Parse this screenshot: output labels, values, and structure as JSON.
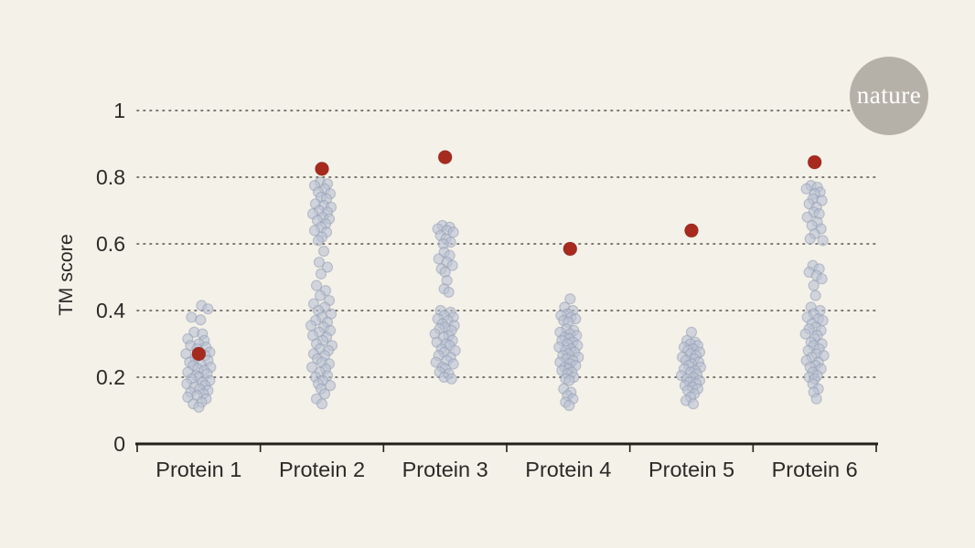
{
  "page": {
    "background_color": "#f4f1e9"
  },
  "logo": {
    "label": "nature",
    "circle_color": "#b6b1a8",
    "text_color": "#ffffff"
  },
  "chart_data": {
    "type": "scatter",
    "variant": "strip-plot-with-highlights",
    "title": "",
    "xlabel": "",
    "ylabel": "TM score",
    "ylim": [
      0,
      1
    ],
    "yticks": [
      0,
      0.2,
      0.4,
      0.6,
      0.8,
      1
    ],
    "ytick_labels": [
      "0",
      "0.2",
      "0.4",
      "0.6",
      "0.8",
      "1"
    ],
    "categories": [
      "Protein 1",
      "Protein 2",
      "Protein 3",
      "Protein 4",
      "Protein 5",
      "Protein 6"
    ],
    "grid": "dotted-horizontal",
    "legend": "none",
    "colors": {
      "background": "#f4f1e9",
      "dot_fill": "#b9c1d2",
      "dot_edge": "#8f99b0",
      "highlight": "#a62a1e",
      "axis": "#222019",
      "grid": "#53514b",
      "text": "#2b2a26"
    },
    "series": [
      {
        "name": "Protein 1",
        "highlight": 0.27,
        "highlight_dx": 0,
        "points": [
          [
            3,
            0.415
          ],
          [
            10,
            0.405
          ],
          [
            -8,
            0.38
          ],
          [
            2,
            0.372
          ],
          [
            -5,
            0.335
          ],
          [
            4,
            0.33
          ],
          [
            -12,
            0.315
          ],
          [
            6,
            0.31
          ],
          [
            0,
            0.3
          ],
          [
            -9,
            0.295
          ],
          [
            8,
            0.29
          ],
          [
            -2,
            0.285
          ],
          [
            12,
            0.275
          ],
          [
            -14,
            0.27
          ],
          [
            7,
            0.265
          ],
          [
            -4,
            0.255
          ],
          [
            10,
            0.25
          ],
          [
            -10,
            0.245
          ],
          [
            2,
            0.24
          ],
          [
            -6,
            0.235
          ],
          [
            13,
            0.23
          ],
          [
            -1,
            0.225
          ],
          [
            6,
            0.22
          ],
          [
            -12,
            0.215
          ],
          [
            9,
            0.21
          ],
          [
            -3,
            0.205
          ],
          [
            0,
            0.2
          ],
          [
            -8,
            0.195
          ],
          [
            12,
            0.19
          ],
          [
            4,
            0.185
          ],
          [
            -13,
            0.18
          ],
          [
            7,
            0.175
          ],
          [
            -5,
            0.17
          ],
          [
            1,
            0.165
          ],
          [
            10,
            0.16
          ],
          [
            -9,
            0.155
          ],
          [
            5,
            0.15
          ],
          [
            -2,
            0.145
          ],
          [
            -12,
            0.14
          ],
          [
            8,
            0.135
          ],
          [
            3,
            0.125
          ],
          [
            -6,
            0.12
          ],
          [
            0,
            0.11
          ]
        ]
      },
      {
        "name": "Protein 2",
        "highlight": 0.825,
        "highlight_dx": 0,
        "points": [
          [
            -2,
            0.785
          ],
          [
            6,
            0.78
          ],
          [
            -8,
            0.775
          ],
          [
            3,
            0.765
          ],
          [
            -4,
            0.755
          ],
          [
            9,
            0.75
          ],
          [
            -1,
            0.74
          ],
          [
            5,
            0.735
          ],
          [
            -7,
            0.72
          ],
          [
            2,
            0.715
          ],
          [
            10,
            0.71
          ],
          [
            -3,
            0.7
          ],
          [
            6,
            0.695
          ],
          [
            -10,
            0.69
          ],
          [
            1,
            0.68
          ],
          [
            8,
            0.675
          ],
          [
            -5,
            0.67
          ],
          [
            4,
            0.66
          ],
          [
            -1,
            0.65
          ],
          [
            -8,
            0.64
          ],
          [
            5,
            0.635
          ],
          [
            0,
            0.62
          ],
          [
            -4,
            0.61
          ],
          [
            2,
            0.578
          ],
          [
            -3,
            0.545
          ],
          [
            6,
            0.53
          ],
          [
            -1,
            0.51
          ],
          [
            -6,
            0.475
          ],
          [
            4,
            0.46
          ],
          [
            -2,
            0.445
          ],
          [
            8,
            0.43
          ],
          [
            -9,
            0.42
          ],
          [
            3,
            0.41
          ],
          [
            -4,
            0.4
          ],
          [
            10,
            0.39
          ],
          [
            0,
            0.38
          ],
          [
            -7,
            0.37
          ],
          [
            6,
            0.365
          ],
          [
            -12,
            0.355
          ],
          [
            2,
            0.35
          ],
          [
            9,
            0.34
          ],
          [
            -3,
            0.335
          ],
          [
            -10,
            0.325
          ],
          [
            5,
            0.32
          ],
          [
            1,
            0.31
          ],
          [
            -6,
            0.3
          ],
          [
            11,
            0.295
          ],
          [
            -2,
            0.285
          ],
          [
            7,
            0.28
          ],
          [
            -9,
            0.27
          ],
          [
            3,
            0.265
          ],
          [
            -5,
            0.255
          ],
          [
            0,
            0.245
          ],
          [
            8,
            0.24
          ],
          [
            -11,
            0.23
          ],
          [
            4,
            0.225
          ],
          [
            -2,
            0.215
          ],
          [
            6,
            0.205
          ],
          [
            -7,
            0.2
          ],
          [
            1,
            0.19
          ],
          [
            -4,
            0.18
          ],
          [
            9,
            0.175
          ],
          [
            -1,
            0.165
          ],
          [
            3,
            0.15
          ],
          [
            -6,
            0.135
          ],
          [
            0,
            0.12
          ]
        ]
      },
      {
        "name": "Protein 3",
        "highlight": 0.86,
        "highlight_dx": 0,
        "points": [
          [
            -3,
            0.655
          ],
          [
            5,
            0.65
          ],
          [
            -8,
            0.645
          ],
          [
            2,
            0.64
          ],
          [
            9,
            0.635
          ],
          [
            -5,
            0.625
          ],
          [
            1,
            0.615
          ],
          [
            6,
            0.605
          ],
          [
            -2,
            0.6
          ],
          [
            -1,
            0.575
          ],
          [
            5,
            0.565
          ],
          [
            -7,
            0.555
          ],
          [
            2,
            0.545
          ],
          [
            8,
            0.535
          ],
          [
            -4,
            0.525
          ],
          [
            0,
            0.515
          ],
          [
            2,
            0.49
          ],
          [
            -1,
            0.465
          ],
          [
            4,
            0.455
          ],
          [
            -5,
            0.4
          ],
          [
            6,
            0.395
          ],
          [
            -1,
            0.385
          ],
          [
            9,
            0.38
          ],
          [
            -8,
            0.375
          ],
          [
            3,
            0.37
          ],
          [
            -3,
            0.36
          ],
          [
            10,
            0.355
          ],
          [
            0,
            0.35
          ],
          [
            -6,
            0.345
          ],
          [
            7,
            0.34
          ],
          [
            -11,
            0.33
          ],
          [
            4,
            0.325
          ],
          [
            -2,
            0.32
          ],
          [
            8,
            0.31
          ],
          [
            -9,
            0.305
          ],
          [
            1,
            0.3
          ],
          [
            5,
            0.295
          ],
          [
            -4,
            0.285
          ],
          [
            11,
            0.28
          ],
          [
            -1,
            0.275
          ],
          [
            -7,
            0.265
          ],
          [
            6,
            0.26
          ],
          [
            2,
            0.25
          ],
          [
            -10,
            0.245
          ],
          [
            9,
            0.24
          ],
          [
            -3,
            0.23
          ],
          [
            0,
            0.225
          ],
          [
            -6,
            0.215
          ],
          [
            4,
            0.21
          ],
          [
            -1,
            0.2
          ],
          [
            7,
            0.195
          ]
        ]
      },
      {
        "name": "Protein 4",
        "highlight": 0.585,
        "highlight_dx": 2,
        "points": [
          [
            2,
            0.435
          ],
          [
            -4,
            0.41
          ],
          [
            5,
            0.4
          ],
          [
            -1,
            0.39
          ],
          [
            -8,
            0.385
          ],
          [
            3,
            0.38
          ],
          [
            8,
            0.375
          ],
          [
            -5,
            0.37
          ],
          [
            0,
            0.365
          ],
          [
            -2,
            0.345
          ],
          [
            6,
            0.34
          ],
          [
            -9,
            0.335
          ],
          [
            2,
            0.33
          ],
          [
            9,
            0.325
          ],
          [
            -4,
            0.32
          ],
          [
            1,
            0.315
          ],
          [
            -7,
            0.31
          ],
          [
            5,
            0.305
          ],
          [
            -1,
            0.3
          ],
          [
            10,
            0.295
          ],
          [
            -10,
            0.29
          ],
          [
            3,
            0.285
          ],
          [
            -3,
            0.28
          ],
          [
            7,
            0.275
          ],
          [
            0,
            0.27
          ],
          [
            -6,
            0.265
          ],
          [
            11,
            0.26
          ],
          [
            -2,
            0.255
          ],
          [
            5,
            0.25
          ],
          [
            -9,
            0.245
          ],
          [
            2,
            0.24
          ],
          [
            8,
            0.235
          ],
          [
            -4,
            0.23
          ],
          [
            0,
            0.225
          ],
          [
            -7,
            0.22
          ],
          [
            4,
            0.215
          ],
          [
            -1,
            0.21
          ],
          [
            6,
            0.2
          ],
          [
            -3,
            0.195
          ],
          [
            1,
            0.19
          ],
          [
            -5,
            0.165
          ],
          [
            3,
            0.155
          ],
          [
            -1,
            0.145
          ],
          [
            5,
            0.135
          ],
          [
            -3,
            0.125
          ],
          [
            1,
            0.115
          ]
        ]
      },
      {
        "name": "Protein 5",
        "highlight": 0.64,
        "highlight_dx": 0,
        "points": [
          [
            0,
            0.335
          ],
          [
            -5,
            0.31
          ],
          [
            4,
            0.305
          ],
          [
            -1,
            0.3
          ],
          [
            7,
            0.295
          ],
          [
            -8,
            0.29
          ],
          [
            2,
            0.285
          ],
          [
            -4,
            0.28
          ],
          [
            9,
            0.275
          ],
          [
            -1,
            0.27
          ],
          [
            5,
            0.265
          ],
          [
            -10,
            0.26
          ],
          [
            3,
            0.255
          ],
          [
            -6,
            0.25
          ],
          [
            8,
            0.245
          ],
          [
            0,
            0.24
          ],
          [
            -3,
            0.235
          ],
          [
            10,
            0.23
          ],
          [
            -8,
            0.225
          ],
          [
            4,
            0.22
          ],
          [
            -1,
            0.215
          ],
          [
            6,
            0.21
          ],
          [
            -11,
            0.205
          ],
          [
            2,
            0.2
          ],
          [
            -5,
            0.195
          ],
          [
            9,
            0.19
          ],
          [
            -2,
            0.185
          ],
          [
            5,
            0.18
          ],
          [
            -7,
            0.175
          ],
          [
            1,
            0.17
          ],
          [
            7,
            0.165
          ],
          [
            -4,
            0.16
          ],
          [
            3,
            0.15
          ],
          [
            -1,
            0.14
          ],
          [
            -6,
            0.13
          ],
          [
            2,
            0.12
          ]
        ]
      },
      {
        "name": "Protein 6",
        "highlight": 0.845,
        "highlight_dx": 0,
        "points": [
          [
            -4,
            0.775
          ],
          [
            3,
            0.77
          ],
          [
            -9,
            0.765
          ],
          [
            6,
            0.755
          ],
          [
            0,
            0.75
          ],
          [
            -2,
            0.735
          ],
          [
            8,
            0.73
          ],
          [
            -6,
            0.72
          ],
          [
            2,
            0.71
          ],
          [
            -1,
            0.695
          ],
          [
            5,
            0.69
          ],
          [
            -8,
            0.68
          ],
          [
            3,
            0.665
          ],
          [
            -3,
            0.655
          ],
          [
            7,
            0.645
          ],
          [
            0,
            0.63
          ],
          [
            -5,
            0.615
          ],
          [
            9,
            0.61
          ],
          [
            -2,
            0.535
          ],
          [
            5,
            0.525
          ],
          [
            -6,
            0.515
          ],
          [
            2,
            0.505
          ],
          [
            8,
            0.495
          ],
          [
            -1,
            0.475
          ],
          [
            1,
            0.445
          ],
          [
            -4,
            0.41
          ],
          [
            6,
            0.4
          ],
          [
            -1,
            0.39
          ],
          [
            -8,
            0.38
          ],
          [
            4,
            0.375
          ],
          [
            9,
            0.37
          ],
          [
            -3,
            0.36
          ],
          [
            1,
            0.35
          ],
          [
            -6,
            0.345
          ],
          [
            7,
            0.34
          ],
          [
            -10,
            0.33
          ],
          [
            3,
            0.325
          ],
          [
            0,
            0.315
          ],
          [
            -4,
            0.305
          ],
          [
            8,
            0.3
          ],
          [
            -1,
            0.295
          ],
          [
            5,
            0.285
          ],
          [
            -7,
            0.28
          ],
          [
            2,
            0.27
          ],
          [
            10,
            0.265
          ],
          [
            -3,
            0.26
          ],
          [
            -9,
            0.25
          ],
          [
            4,
            0.245
          ],
          [
            1,
            0.235
          ],
          [
            -5,
            0.23
          ],
          [
            7,
            0.225
          ],
          [
            -2,
            0.215
          ],
          [
            3,
            0.205
          ],
          [
            -6,
            0.2
          ],
          [
            0,
            0.195
          ],
          [
            -2,
            0.18
          ],
          [
            4,
            0.165
          ],
          [
            -1,
            0.155
          ],
          [
            2,
            0.135
          ]
        ]
      }
    ]
  }
}
